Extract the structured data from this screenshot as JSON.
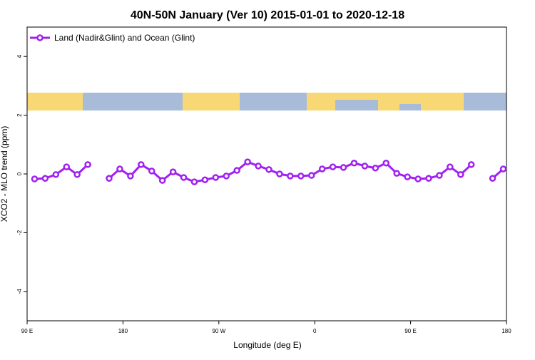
{
  "chart_data": {
    "type": "line",
    "title": "40N-50N January (Ver 10)   2015-01-01 to 2020-12-18",
    "x_label": "Longitude (deg E)",
    "y_label": "XCO2 - MLO trend (ppm)",
    "x": [
      97,
      107,
      117,
      127,
      137,
      147,
      157,
      167,
      177,
      187,
      197,
      207,
      217,
      227,
      237,
      247,
      257,
      267,
      277,
      287,
      297,
      307,
      317,
      327,
      337,
      347,
      357,
      367,
      377,
      387,
      397,
      407,
      417,
      427,
      437,
      447,
      457,
      467,
      477,
      487,
      497,
      507,
      517,
      527,
      537
    ],
    "series": [
      {
        "name": "Land (Nadir&Glint) and Ocean (Glint)",
        "color": "#a020f0",
        "values": [
          -0.17,
          -0.15,
          -0.02,
          0.24,
          -0.02,
          0.32,
          null,
          -0.15,
          0.17,
          -0.07,
          0.32,
          0.1,
          -0.22,
          0.07,
          -0.12,
          -0.27,
          -0.2,
          -0.12,
          -0.07,
          0.12,
          0.41,
          0.27,
          0.15,
          0,
          -0.07,
          -0.07,
          -0.05,
          0.17,
          0.24,
          0.22,
          0.37,
          0.27,
          0.2,
          0.37,
          0.02,
          -0.1,
          -0.17,
          -0.15,
          -0.05,
          0.24,
          -0.02,
          0.32,
          null,
          -0.15,
          0.17
        ]
      }
    ],
    "xlim": [
      90,
      540
    ],
    "xticks": [
      {
        "value": 90,
        "label": "90 E"
      },
      {
        "value": 180,
        "label": "180"
      },
      {
        "value": 270,
        "label": "90 W"
      },
      {
        "value": 360,
        "label": "0"
      },
      {
        "value": 450,
        "label": "90 E"
      },
      {
        "value": 540,
        "label": "180"
      }
    ],
    "ylim": [
      -5,
      5
    ],
    "yticks": [
      -4,
      -2,
      0,
      2,
      4
    ],
    "legend": "top-left"
  }
}
